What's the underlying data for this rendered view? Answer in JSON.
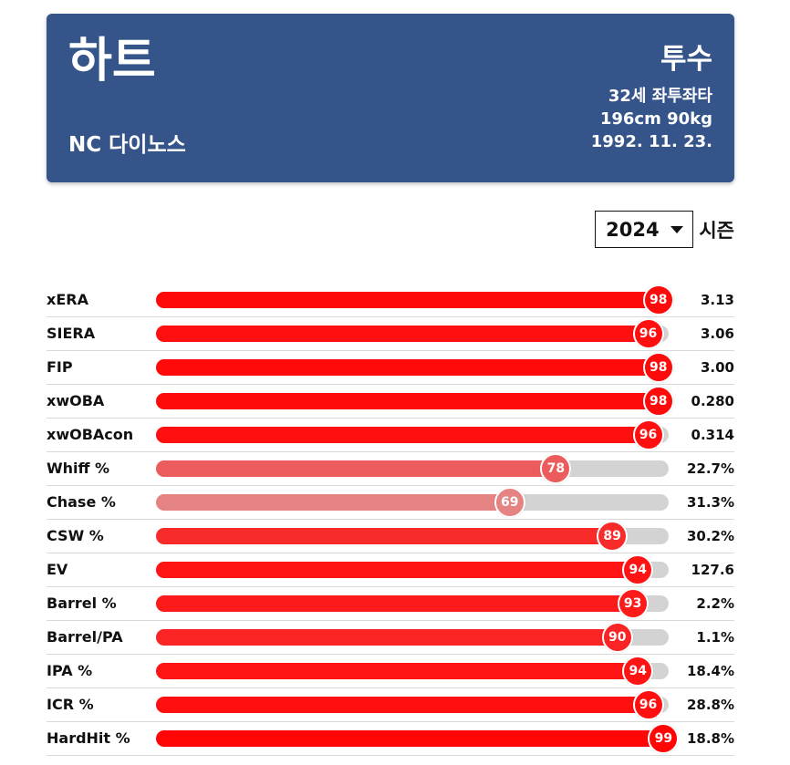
{
  "header": {
    "player_name": "하트",
    "team": "NC 다이노스",
    "position": "투수",
    "age_hand": "32세 좌투좌타",
    "body": "196cm 90kg",
    "birth": "1992. 11. 23.",
    "background_color": "#34548a"
  },
  "season": {
    "selected": "2024",
    "label": "시즌"
  },
  "stats": [
    {
      "name": "xERA",
      "percentile": 98,
      "value": "3.13",
      "color": "#ff0a0a"
    },
    {
      "name": "SIERA",
      "percentile": 96,
      "value": "3.06",
      "color": "#ff0f0f"
    },
    {
      "name": "FIP",
      "percentile": 98,
      "value": "3.00",
      "color": "#ff0a0a"
    },
    {
      "name": "xwOBA",
      "percentile": 98,
      "value": "0.280",
      "color": "#ff0a0a"
    },
    {
      "name": "xwOBAcon",
      "percentile": 96,
      "value": "0.314",
      "color": "#ff0f0f"
    },
    {
      "name": "Whiff %",
      "percentile": 78,
      "value": "22.7%",
      "color": "#ec5c5c"
    },
    {
      "name": "Chase %",
      "percentile": 69,
      "value": "31.3%",
      "color": "#e58383"
    },
    {
      "name": "CSW %",
      "percentile": 89,
      "value": "30.2%",
      "color": "#f82b2b"
    },
    {
      "name": "EV",
      "percentile": 94,
      "value": "127.6",
      "color": "#ff1414"
    },
    {
      "name": "Barrel %",
      "percentile": 93,
      "value": "2.2%",
      "color": "#fc1a1a"
    },
    {
      "name": "Barrel/PA",
      "percentile": 90,
      "value": "1.1%",
      "color": "#fb2424"
    },
    {
      "name": "IPA %",
      "percentile": 94,
      "value": "18.4%",
      "color": "#ff1414"
    },
    {
      "name": "ICR %",
      "percentile": 96,
      "value": "28.8%",
      "color": "#ff0f0f"
    },
    {
      "name": "HardHit %",
      "percentile": 99,
      "value": "18.8%",
      "color": "#ff0505"
    }
  ]
}
